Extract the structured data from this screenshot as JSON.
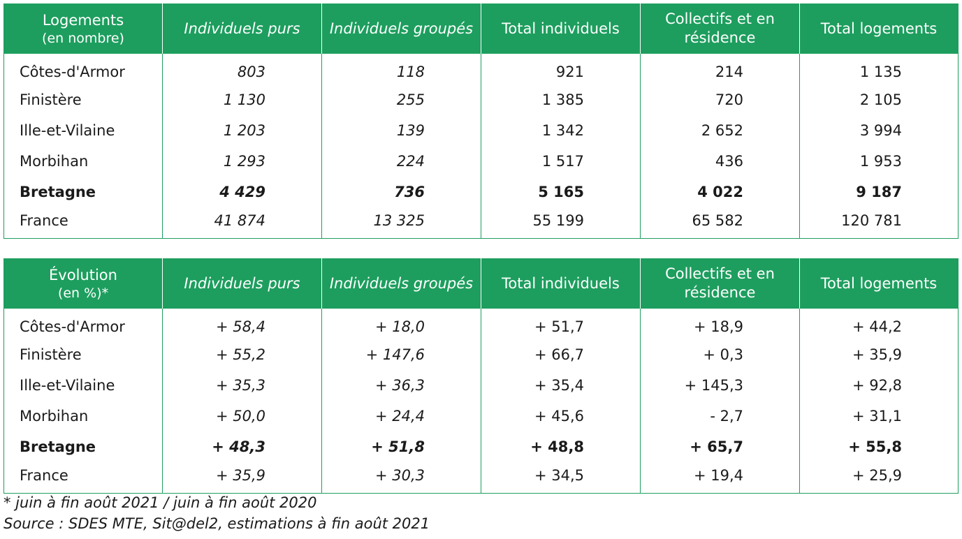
{
  "table_counts": {
    "headers": {
      "col0_main": "Logements",
      "col0_sub": "(en nombre)",
      "col1": "Individuels purs",
      "col2": "Individuels groupés",
      "col3": "Total individuels",
      "col4": "Collectifs et en résidence",
      "col5": "Total logements"
    },
    "rows": [
      {
        "region": "Côtes-d'Armor",
        "individuels_purs": "803",
        "individuels_groupes": "118",
        "total_individuels": "921",
        "collectifs": "214",
        "total_logements": "1 135"
      },
      {
        "region": "Finistère",
        "individuels_purs": "1 130",
        "individuels_groupes": "255",
        "total_individuels": "1 385",
        "collectifs": "720",
        "total_logements": "2 105"
      },
      {
        "region": "Ille-et-Vilaine",
        "individuels_purs": "1 203",
        "individuels_groupes": "139",
        "total_individuels": "1 342",
        "collectifs": "2 652",
        "total_logements": "3 994"
      },
      {
        "region": "Morbihan",
        "individuels_purs": "1 293",
        "individuels_groupes": "224",
        "total_individuels": "1 517",
        "collectifs": "436",
        "total_logements": "1 953"
      },
      {
        "region": "Bretagne",
        "individuels_purs": "4 429",
        "individuels_groupes": "736",
        "total_individuels": "5 165",
        "collectifs": "4 022",
        "total_logements": "9 187"
      },
      {
        "region": "France",
        "individuels_purs": "41 874",
        "individuels_groupes": "13 325",
        "total_individuels": "55 199",
        "collectifs": "65 582",
        "total_logements": "120 781"
      }
    ]
  },
  "table_evolution": {
    "headers": {
      "col0_main": "Évolution",
      "col0_sub": "(en %)*",
      "col1": "Individuels purs",
      "col2": "Individuels groupés",
      "col3": "Total individuels",
      "col4": "Collectifs et en résidence",
      "col5": "Total logements"
    },
    "rows": [
      {
        "region": "Côtes-d'Armor",
        "individuels_purs": "+ 58,4",
        "individuels_groupes": "+ 18,0",
        "total_individuels": "+ 51,7",
        "collectifs": "+ 18,9",
        "total_logements": "+ 44,2"
      },
      {
        "region": "Finistère",
        "individuels_purs": "+ 55,2",
        "individuels_groupes": "+ 147,6",
        "total_individuels": "+ 66,7",
        "collectifs": "+ 0,3",
        "total_logements": "+ 35,9"
      },
      {
        "region": "Ille-et-Vilaine",
        "individuels_purs": "+ 35,3",
        "individuels_groupes": "+ 36,3",
        "total_individuels": "+ 35,4",
        "collectifs": "+ 145,3",
        "total_logements": "+ 92,8"
      },
      {
        "region": "Morbihan",
        "individuels_purs": "+ 50,0",
        "individuels_groupes": "+ 24,4",
        "total_individuels": "+ 45,6",
        "collectifs": "- 2,7",
        "total_logements": "+ 31,1"
      },
      {
        "region": "Bretagne",
        "individuels_purs": "+ 48,3",
        "individuels_groupes": "+ 51,8",
        "total_individuels": "+ 48,8",
        "collectifs": "+ 65,7",
        "total_logements": "+ 55,8"
      },
      {
        "region": "France",
        "individuels_purs": "+ 35,9",
        "individuels_groupes": "+ 30,3",
        "total_individuels": "+ 34,5",
        "collectifs": "+ 19,4",
        "total_logements": "+ 25,9"
      }
    ]
  },
  "footnotes": {
    "period": "* juin à fin août 2021 / juin à fin août 2020",
    "source": "Source : SDES MTE, Sit@del2, estimations à fin août 2021"
  },
  "colors": {
    "header_background": "#1d9e5e",
    "header_text": "#ffffff",
    "border": "#1d9e5e"
  }
}
